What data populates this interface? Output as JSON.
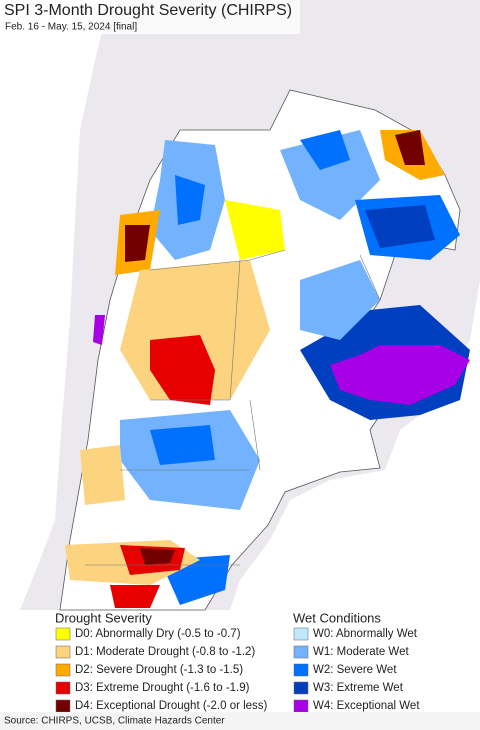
{
  "header": {
    "title": "SPI 3-Month Drought Severity (CHIRPS)",
    "subtitle": "Feb. 16 - May. 15, 2024 [final]"
  },
  "legend": [
    {
      "title": "Drought Severity",
      "items": [
        {
          "label": "D0: Abnormally Dry (-0.5 to -0.7)",
          "color": "#ffff00"
        },
        {
          "label": "D1: Moderate Drought (-0.8 to -1.2)",
          "color": "#fcd37f"
        },
        {
          "label": "D2: Severe Drought (-1.3 to -1.5)",
          "color": "#ffaa00"
        },
        {
          "label": "D3: Extreme Drought (-1.6 to -1.9)",
          "color": "#e60000"
        },
        {
          "label": "D4: Exceptional Drought (-2.0 or less)",
          "color": "#730000"
        }
      ]
    },
    {
      "title": "Wet Conditions",
      "items": [
        {
          "label": "W0: Abnormally Wet",
          "color": "#bee8ff"
        },
        {
          "label": "W1: Moderate Wet",
          "color": "#73b2ff"
        },
        {
          "label": "W2: Severe Wet",
          "color": "#0070ff"
        },
        {
          "label": "W3: Extreme Wet",
          "color": "#0040c0"
        },
        {
          "label": "W4: Exceptional Wet",
          "color": "#a800e6"
        }
      ]
    }
  ],
  "footer": {
    "source": "Source: CHIRPS, UCSB, Climate Hazards Center"
  }
}
